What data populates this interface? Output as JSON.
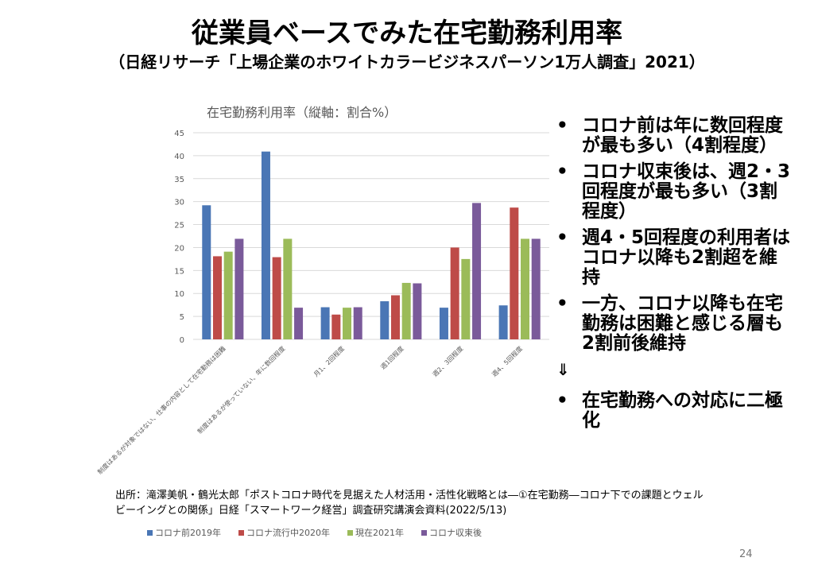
{
  "title": "従業員ベースでみた在宅勤務利用率",
  "subtitle": "（日経リサーチ「上場企業のホワイトカラービジネスパーソン1万人調査」2021）",
  "chart_data": {
    "type": "bar",
    "title": "在宅勤務利用率（縦軸：割合%）",
    "categories": [
      "制度はあるが対象ではない、仕事の内容として在宅勤務は困難",
      "制度はあるが使っていない、年に数回程度",
      "月1、2回程度",
      "週1回程度",
      "週2、3回程度",
      "週4、5回程度"
    ],
    "series": [
      {
        "name": "コロナ前2019年",
        "color": "#4a76b5",
        "values": [
          29.2,
          40.9,
          7.0,
          8.3,
          6.9,
          7.4
        ]
      },
      {
        "name": "コロナ流行中2020年",
        "color": "#be4b48",
        "values": [
          18.1,
          17.9,
          5.4,
          9.6,
          20.0,
          28.7
        ]
      },
      {
        "name": "現在2021年",
        "color": "#9bbb59",
        "values": [
          19.1,
          21.9,
          6.9,
          12.3,
          17.5,
          21.9
        ]
      },
      {
        "name": "コロナ収束後",
        "color": "#7a5a9a",
        "values": [
          21.9,
          6.9,
          7.0,
          12.2,
          29.7,
          21.9
        ]
      }
    ],
    "yticks": [
      "0",
      "5",
      "10",
      "15",
      "20",
      "25",
      "30",
      "35",
      "40",
      "45"
    ],
    "ylim": [
      0,
      45
    ],
    "grid": true,
    "legend": "bottom"
  },
  "bullets": [
    "コロナ前は年に数回程度が最も多い（4割程度）",
    "コロナ収束後は、週2・3回程度が最も多い（3割程度）",
    "週4・5回程度の利用者はコロナ以降も2割超を維持",
    "一方、コロナ以降も在宅勤務は困難と感じる層も2割前後維持"
  ],
  "arrow": "⇓",
  "conclusion": "在宅勤務への対応に二極化",
  "bullet_mark": "•",
  "source": [
    "出所：滝澤美帆・鶴光太郎「ポストコロナ時代を見据えた人材活用・活性化戦略とは―①在宅勤務―コロナ下での課題とウェル",
    "ビーイングとの関係」日経「スマートワーク経営」調査研究講演会資料(2022/5/13)"
  ],
  "page_number": "24"
}
